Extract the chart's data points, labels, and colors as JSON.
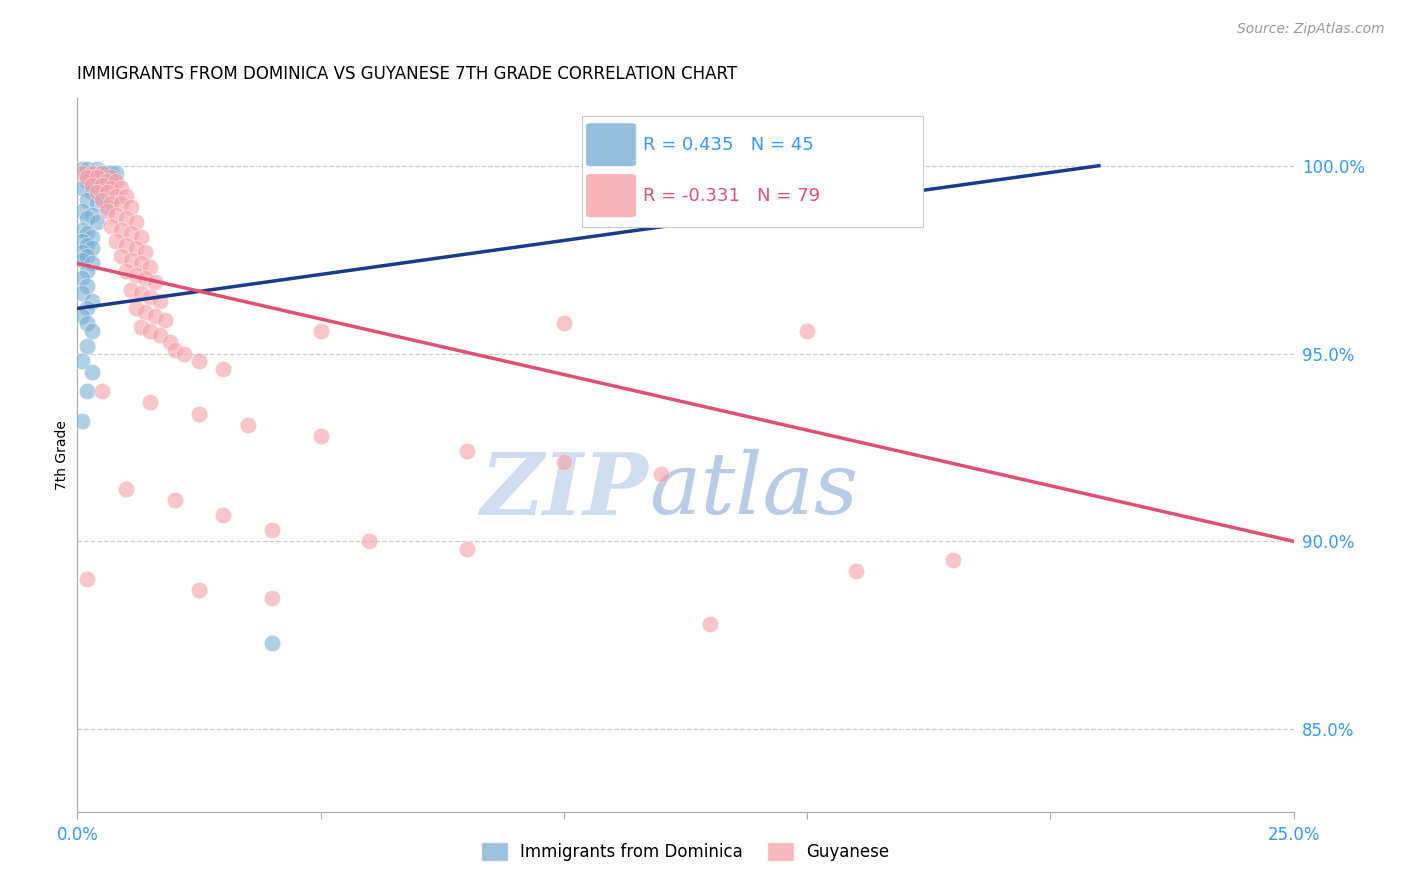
{
  "title": "IMMIGRANTS FROM DOMINICA VS GUYANESE 7TH GRADE CORRELATION CHART",
  "source": "Source: ZipAtlas.com",
  "ylabel": "7th Grade",
  "ytick_labels": [
    "100.0%",
    "95.0%",
    "90.0%",
    "85.0%"
  ],
  "ytick_values": [
    1.0,
    0.95,
    0.9,
    0.85
  ],
  "xlim": [
    0.0,
    0.25
  ],
  "ylim": [
    0.828,
    1.018
  ],
  "legend_blue_label": "Immigrants from Dominica",
  "legend_pink_label": "Guyanese",
  "legend_R_blue": "R = 0.435",
  "legend_N_blue": "N = 45",
  "legend_R_pink": "R = -0.331",
  "legend_N_pink": "N = 79",
  "blue_color": "#7BAFD4",
  "pink_color": "#F4A0A8",
  "blue_line_color": "#1A3A8A",
  "pink_line_color": "#E05070",
  "blue_points": [
    [
      0.001,
      0.999
    ],
    [
      0.002,
      0.999
    ],
    [
      0.004,
      0.999
    ],
    [
      0.005,
      0.998
    ],
    [
      0.006,
      0.998
    ],
    [
      0.007,
      0.998
    ],
    [
      0.008,
      0.998
    ],
    [
      0.003,
      0.997
    ],
    [
      0.002,
      0.996
    ],
    [
      0.004,
      0.995
    ],
    [
      0.001,
      0.994
    ],
    [
      0.003,
      0.993
    ],
    [
      0.005,
      0.992
    ],
    [
      0.002,
      0.991
    ],
    [
      0.004,
      0.99
    ],
    [
      0.006,
      0.989
    ],
    [
      0.001,
      0.988
    ],
    [
      0.003,
      0.987
    ],
    [
      0.002,
      0.986
    ],
    [
      0.004,
      0.985
    ],
    [
      0.001,
      0.983
    ],
    [
      0.002,
      0.982
    ],
    [
      0.003,
      0.981
    ],
    [
      0.001,
      0.98
    ],
    [
      0.002,
      0.979
    ],
    [
      0.003,
      0.978
    ],
    [
      0.001,
      0.977
    ],
    [
      0.002,
      0.976
    ],
    [
      0.001,
      0.975
    ],
    [
      0.003,
      0.974
    ],
    [
      0.002,
      0.972
    ],
    [
      0.001,
      0.97
    ],
    [
      0.002,
      0.968
    ],
    [
      0.001,
      0.966
    ],
    [
      0.003,
      0.964
    ],
    [
      0.002,
      0.962
    ],
    [
      0.001,
      0.96
    ],
    [
      0.002,
      0.958
    ],
    [
      0.003,
      0.956
    ],
    [
      0.002,
      0.952
    ],
    [
      0.001,
      0.948
    ],
    [
      0.003,
      0.945
    ],
    [
      0.002,
      0.94
    ],
    [
      0.001,
      0.932
    ],
    [
      0.04,
      0.873
    ]
  ],
  "pink_points": [
    [
      0.001,
      0.998
    ],
    [
      0.003,
      0.998
    ],
    [
      0.005,
      0.998
    ],
    [
      0.007,
      0.997
    ],
    [
      0.002,
      0.997
    ],
    [
      0.004,
      0.997
    ],
    [
      0.006,
      0.996
    ],
    [
      0.008,
      0.996
    ],
    [
      0.003,
      0.995
    ],
    [
      0.005,
      0.995
    ],
    [
      0.007,
      0.994
    ],
    [
      0.009,
      0.994
    ],
    [
      0.004,
      0.993
    ],
    [
      0.006,
      0.993
    ],
    [
      0.008,
      0.992
    ],
    [
      0.01,
      0.992
    ],
    [
      0.005,
      0.991
    ],
    [
      0.007,
      0.99
    ],
    [
      0.009,
      0.99
    ],
    [
      0.011,
      0.989
    ],
    [
      0.006,
      0.988
    ],
    [
      0.008,
      0.987
    ],
    [
      0.01,
      0.986
    ],
    [
      0.012,
      0.985
    ],
    [
      0.007,
      0.984
    ],
    [
      0.009,
      0.983
    ],
    [
      0.011,
      0.982
    ],
    [
      0.013,
      0.981
    ],
    [
      0.008,
      0.98
    ],
    [
      0.01,
      0.979
    ],
    [
      0.012,
      0.978
    ],
    [
      0.014,
      0.977
    ],
    [
      0.009,
      0.976
    ],
    [
      0.011,
      0.975
    ],
    [
      0.013,
      0.974
    ],
    [
      0.015,
      0.973
    ],
    [
      0.01,
      0.972
    ],
    [
      0.012,
      0.971
    ],
    [
      0.014,
      0.97
    ],
    [
      0.016,
      0.969
    ],
    [
      0.011,
      0.967
    ],
    [
      0.013,
      0.966
    ],
    [
      0.015,
      0.965
    ],
    [
      0.017,
      0.964
    ],
    [
      0.012,
      0.962
    ],
    [
      0.014,
      0.961
    ],
    [
      0.016,
      0.96
    ],
    [
      0.018,
      0.959
    ],
    [
      0.013,
      0.957
    ],
    [
      0.015,
      0.956
    ],
    [
      0.017,
      0.955
    ],
    [
      0.019,
      0.953
    ],
    [
      0.02,
      0.951
    ],
    [
      0.022,
      0.95
    ],
    [
      0.025,
      0.948
    ],
    [
      0.03,
      0.946
    ],
    [
      0.05,
      0.956
    ],
    [
      0.1,
      0.958
    ],
    [
      0.15,
      0.956
    ],
    [
      0.005,
      0.94
    ],
    [
      0.015,
      0.937
    ],
    [
      0.025,
      0.934
    ],
    [
      0.035,
      0.931
    ],
    [
      0.05,
      0.928
    ],
    [
      0.08,
      0.924
    ],
    [
      0.1,
      0.921
    ],
    [
      0.12,
      0.918
    ],
    [
      0.01,
      0.914
    ],
    [
      0.02,
      0.911
    ],
    [
      0.03,
      0.907
    ],
    [
      0.04,
      0.903
    ],
    [
      0.06,
      0.9
    ],
    [
      0.08,
      0.898
    ],
    [
      0.002,
      0.89
    ],
    [
      0.025,
      0.887
    ],
    [
      0.04,
      0.885
    ],
    [
      0.18,
      0.895
    ],
    [
      0.13,
      0.878
    ],
    [
      0.16,
      0.892
    ]
  ],
  "blue_trendline_x": [
    0.0,
    0.21
  ],
  "blue_trendline_y": [
    0.962,
    1.0
  ],
  "pink_trendline_x": [
    0.0,
    0.25
  ],
  "pink_trendline_y": [
    0.974,
    0.9
  ]
}
